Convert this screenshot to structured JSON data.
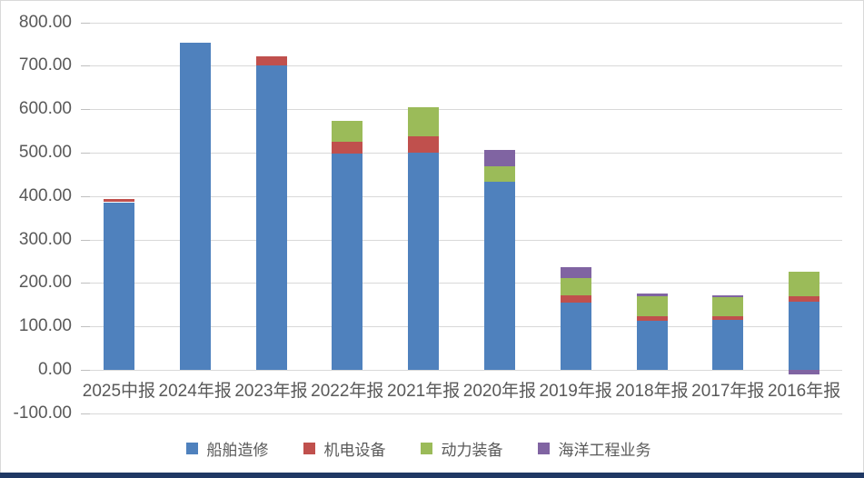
{
  "chart_data": {
    "type": "bar",
    "stacked": true,
    "title": "",
    "xlabel": "",
    "ylabel": "",
    "categories": [
      "2025中报",
      "2024年报",
      "2023年报",
      "2022年报",
      "2021年报",
      "2020年报",
      "2019年报",
      "2018年报",
      "2017年报",
      "2016年报"
    ],
    "series": [
      {
        "name": "船舶造修",
        "color": "#4F81BD",
        "values": [
          386,
          754,
          700,
          497,
          500,
          433,
          155,
          113,
          115,
          157
        ]
      },
      {
        "name": "机电设备",
        "color": "#C0504D",
        "values": [
          7,
          0,
          22,
          28,
          38,
          0,
          16,
          11,
          9,
          12
        ]
      },
      {
        "name": "动力装备",
        "color": "#9BBB59",
        "values": [
          0,
          0,
          0,
          49,
          67,
          36,
          40,
          46,
          44,
          57
        ]
      },
      {
        "name": "海洋工程业务",
        "color": "#8064A2",
        "values": [
          0,
          0,
          0,
          0,
          0,
          38,
          26,
          5,
          4,
          -10
        ]
      }
    ],
    "ylim": [
      -100,
      800
    ],
    "y_ticks": [
      "800.00",
      "700.00",
      "600.00",
      "500.00",
      "400.00",
      "300.00",
      "200.00",
      "100.00",
      "0.00",
      "-100.00"
    ],
    "y_tick_values": [
      800,
      700,
      600,
      500,
      400,
      300,
      200,
      100,
      0,
      -100
    ],
    "grid": true,
    "legend_position": "bottom",
    "colors": {
      "gridline": "#D9D9D9",
      "axis_tick": "#BFBFBF",
      "axis_label": "#595959",
      "frame_border": "#D9D9D9",
      "bottom_bar": "#1F3864",
      "background": "#FFFFFF"
    }
  }
}
